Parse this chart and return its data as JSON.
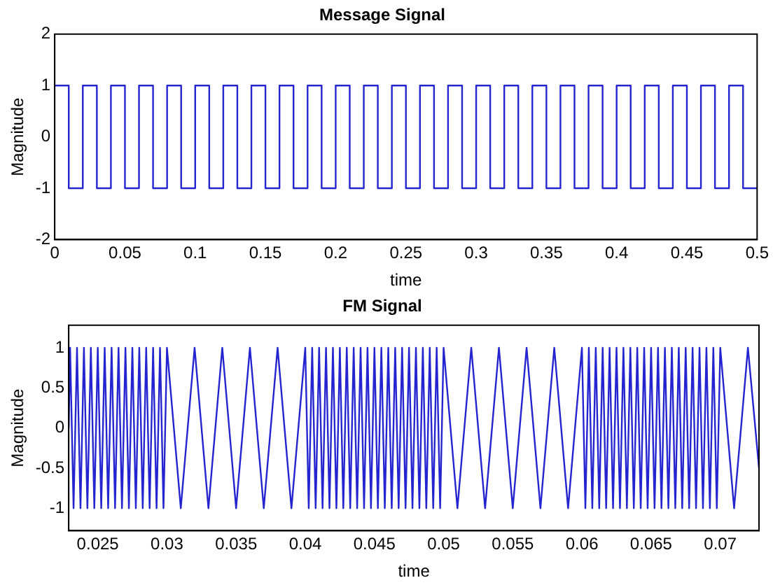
{
  "chart_data": [
    {
      "type": "step",
      "title": "Message Signal",
      "xlabel": "time",
      "ylabel": "Magnitude",
      "xlim": [
        0,
        0.5
      ],
      "xticks": [
        0,
        0.05,
        0.1,
        0.15,
        0.2,
        0.25,
        0.3,
        0.35,
        0.4,
        0.45,
        0.5
      ],
      "ylim": [
        -2,
        2
      ],
      "yticks": [
        -2,
        -1,
        0,
        1,
        2
      ],
      "grid": false,
      "series": [
        {
          "color": "#2424d0",
          "x": [
            0,
            0.01,
            0.02,
            0.03,
            0.04,
            0.05,
            0.06,
            0.07,
            0.08,
            0.09,
            0.1,
            0.11,
            0.12,
            0.13,
            0.14,
            0.15,
            0.16,
            0.17,
            0.18,
            0.19,
            0.2,
            0.21,
            0.22,
            0.23,
            0.24,
            0.25,
            0.26,
            0.27,
            0.28,
            0.29,
            0.3,
            0.31,
            0.32,
            0.33,
            0.34,
            0.35,
            0.36,
            0.37,
            0.38,
            0.39,
            0.4,
            0.41,
            0.42,
            0.43,
            0.44,
            0.45,
            0.46,
            0.47,
            0.48,
            0.49,
            0.5
          ],
          "values": [
            1,
            -1,
            1,
            -1,
            1,
            -1,
            1,
            -1,
            1,
            -1,
            1,
            -1,
            1,
            -1,
            1,
            -1,
            1,
            -1,
            1,
            -1,
            1,
            -1,
            1,
            -1,
            1,
            -1,
            1,
            -1,
            1,
            -1,
            1,
            -1,
            1,
            -1,
            1,
            -1,
            1,
            -1,
            1,
            -1,
            1,
            -1,
            1,
            -1,
            1,
            -1,
            1,
            -1,
            1,
            -1,
            -1
          ]
        }
      ]
    },
    {
      "type": "line",
      "title": "FM Signal",
      "xlabel": "time",
      "ylabel": "Magnitude",
      "xlim": [
        0.0229,
        0.0728
      ],
      "xticks": [
        0.025,
        0.03,
        0.035,
        0.04,
        0.045,
        0.05,
        0.055,
        0.06,
        0.065,
        0.07
      ],
      "ylim": [
        -1.28,
        1.28
      ],
      "yticks": [
        -1,
        -0.5,
        0,
        0.5,
        1
      ],
      "grid": false,
      "series": [
        {
          "color": "#2424d0",
          "x": [
            0.0229,
            0.023,
            0.02325,
            0.0235,
            0.02375,
            0.024,
            0.02425,
            0.0245,
            0.02475,
            0.025,
            0.02525,
            0.0255,
            0.02575,
            0.026,
            0.02625,
            0.0265,
            0.02675,
            0.027,
            0.02725,
            0.0275,
            0.02775,
            0.028,
            0.02825,
            0.0285,
            0.02875,
            0.029,
            0.02925,
            0.0295,
            0.02975,
            0.03,
            0.031,
            0.032,
            0.033,
            0.034,
            0.035,
            0.036,
            0.037,
            0.038,
            0.039,
            0.04,
            0.04025,
            0.0405,
            0.04075,
            0.041,
            0.04125,
            0.0415,
            0.04175,
            0.042,
            0.04225,
            0.0425,
            0.04275,
            0.043,
            0.04325,
            0.0435,
            0.04375,
            0.044,
            0.04425,
            0.0445,
            0.04475,
            0.045,
            0.04525,
            0.0455,
            0.04575,
            0.046,
            0.04625,
            0.0465,
            0.04675,
            0.047,
            0.04725,
            0.0475,
            0.04775,
            0.048,
            0.04825,
            0.0485,
            0.04875,
            0.049,
            0.04925,
            0.0495,
            0.04975,
            0.05,
            0.051,
            0.052,
            0.053,
            0.054,
            0.055,
            0.056,
            0.057,
            0.058,
            0.059,
            0.06,
            0.06025,
            0.0605,
            0.06075,
            0.061,
            0.06125,
            0.0615,
            0.06175,
            0.062,
            0.06225,
            0.0625,
            0.06275,
            0.063,
            0.06325,
            0.0635,
            0.06375,
            0.064,
            0.06425,
            0.0645,
            0.06475,
            0.065,
            0.06525,
            0.0655,
            0.06575,
            0.066,
            0.06625,
            0.0665,
            0.06675,
            0.067,
            0.06725,
            0.0675,
            0.06775,
            0.068,
            0.06825,
            0.0685,
            0.06875,
            0.069,
            0.06925,
            0.0695,
            0.06975,
            0.07,
            0.071,
            0.072,
            0.0728
          ],
          "values": [
            0,
            1,
            -1,
            1,
            -1,
            1,
            -1,
            1,
            -1,
            1,
            -1,
            1,
            -1,
            1,
            -1,
            1,
            -1,
            1,
            -1,
            1,
            -1,
            1,
            -1,
            1,
            -1,
            1,
            -1,
            1,
            -1,
            1,
            -1,
            1,
            -1,
            1,
            -1,
            1,
            -1,
            1,
            -1,
            1,
            -1,
            1,
            -1,
            1,
            -1,
            1,
            -1,
            1,
            -1,
            1,
            -1,
            1,
            -1,
            1,
            -1,
            1,
            -1,
            1,
            -1,
            1,
            -1,
            1,
            -1,
            1,
            -1,
            1,
            -1,
            1,
            -1,
            1,
            -1,
            1,
            -1,
            1,
            -1,
            1,
            -1,
            1,
            -1,
            1,
            -1,
            1,
            -1,
            1,
            -1,
            1,
            -1,
            1,
            -1,
            1,
            -1,
            1,
            -1,
            1,
            -1,
            1,
            -1,
            1,
            -1,
            1,
            -1,
            1,
            -1,
            1,
            -1,
            1,
            -1,
            1,
            -1,
            1,
            -1,
            1,
            -1,
            1,
            -1,
            1,
            -1,
            1,
            -1,
            1,
            -1,
            1,
            -1,
            1,
            -1,
            1,
            -1,
            1,
            -1,
            1,
            -1,
            1,
            -0.5
          ]
        }
      ]
    }
  ]
}
